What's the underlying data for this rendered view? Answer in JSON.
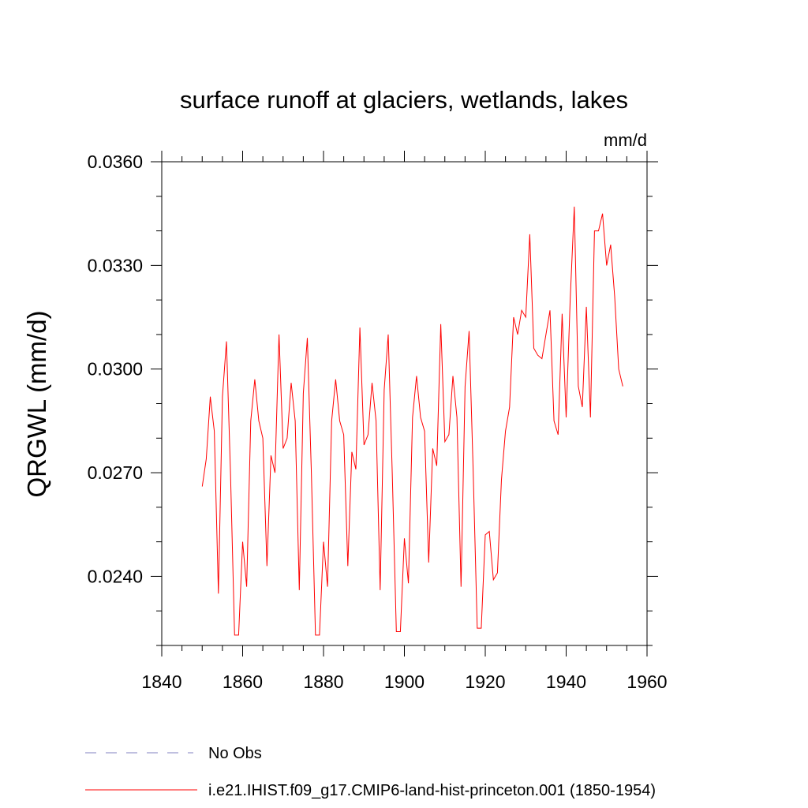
{
  "chart_data": {
    "type": "line",
    "title": "surface runoff at glaciers, wetlands, lakes",
    "units_label": "mm/d",
    "ylabel": "QRGWL  (mm/d)",
    "xlabel": "",
    "xlim": [
      1840,
      1960
    ],
    "ylim": [
      0.022,
      0.036
    ],
    "xticks": [
      1840,
      1860,
      1880,
      1900,
      1920,
      1940,
      1960
    ],
    "xtick_labels": [
      "1840",
      "1860",
      "1880",
      "1900",
      "1920",
      "1940",
      "1960"
    ],
    "yticks": [
      0.024,
      0.027,
      0.03,
      0.033,
      0.036
    ],
    "ytick_labels": [
      "0.0240",
      "0.0270",
      "0.0300",
      "0.0330",
      "0.0360"
    ],
    "grid": false,
    "legend_position": "bottom",
    "series": [
      {
        "name": "No Obs",
        "style": "dashed",
        "color": "#8080c0",
        "x": [],
        "y": []
      },
      {
        "name": "i.e21.IHIST.f09_g17.CMIP6-land-hist-princeton.001 (1850-1954)",
        "style": "solid",
        "color": "#ff0000",
        "x": [
          1850,
          1851,
          1852,
          1853,
          1854,
          1855,
          1856,
          1857,
          1858,
          1859,
          1860,
          1861,
          1862,
          1863,
          1864,
          1865,
          1866,
          1867,
          1868,
          1869,
          1870,
          1871,
          1872,
          1873,
          1874,
          1875,
          1876,
          1877,
          1878,
          1879,
          1880,
          1881,
          1882,
          1883,
          1884,
          1885,
          1886,
          1887,
          1888,
          1889,
          1890,
          1891,
          1892,
          1893,
          1894,
          1895,
          1896,
          1897,
          1898,
          1899,
          1900,
          1901,
          1902,
          1903,
          1904,
          1905,
          1906,
          1907,
          1908,
          1909,
          1910,
          1911,
          1912,
          1913,
          1914,
          1915,
          1916,
          1917,
          1918,
          1919,
          1920,
          1921,
          1922,
          1923,
          1924,
          1925,
          1926,
          1927,
          1928,
          1929,
          1930,
          1931,
          1932,
          1933,
          1934,
          1935,
          1936,
          1937,
          1938,
          1939,
          1940,
          1941,
          1942,
          1943,
          1944,
          1945,
          1946,
          1947,
          1948,
          1949,
          1950,
          1951,
          1952,
          1953,
          1954
        ],
        "y": [
          0.0266,
          0.0274,
          0.0292,
          0.0282,
          0.0235,
          0.0292,
          0.0308,
          0.027,
          0.0223,
          0.0223,
          0.025,
          0.0237,
          0.0285,
          0.0297,
          0.0285,
          0.028,
          0.0243,
          0.0275,
          0.027,
          0.031,
          0.0277,
          0.028,
          0.0296,
          0.0285,
          0.0236,
          0.0293,
          0.0309,
          0.027,
          0.0223,
          0.0223,
          0.025,
          0.0237,
          0.0285,
          0.0297,
          0.0285,
          0.0281,
          0.0243,
          0.0276,
          0.0271,
          0.0312,
          0.0278,
          0.0281,
          0.0296,
          0.0285,
          0.0236,
          0.0294,
          0.031,
          0.027,
          0.0224,
          0.0224,
          0.0251,
          0.0238,
          0.0286,
          0.0298,
          0.0286,
          0.0282,
          0.0244,
          0.0277,
          0.0272,
          0.0313,
          0.0279,
          0.0281,
          0.0298,
          0.0286,
          0.0237,
          0.0295,
          0.0311,
          0.0271,
          0.0225,
          0.0225,
          0.0252,
          0.0253,
          0.0239,
          0.0241,
          0.0268,
          0.0282,
          0.0289,
          0.0315,
          0.031,
          0.0317,
          0.0315,
          0.0339,
          0.0306,
          0.0304,
          0.0303,
          0.031,
          0.0317,
          0.0285,
          0.0281,
          0.0316,
          0.0286,
          0.032,
          0.0347,
          0.0295,
          0.0289,
          0.0318,
          0.0286,
          0.034,
          0.034,
          0.0345,
          0.033,
          0.0336,
          0.0321,
          0.03,
          0.0295
        ]
      }
    ]
  }
}
